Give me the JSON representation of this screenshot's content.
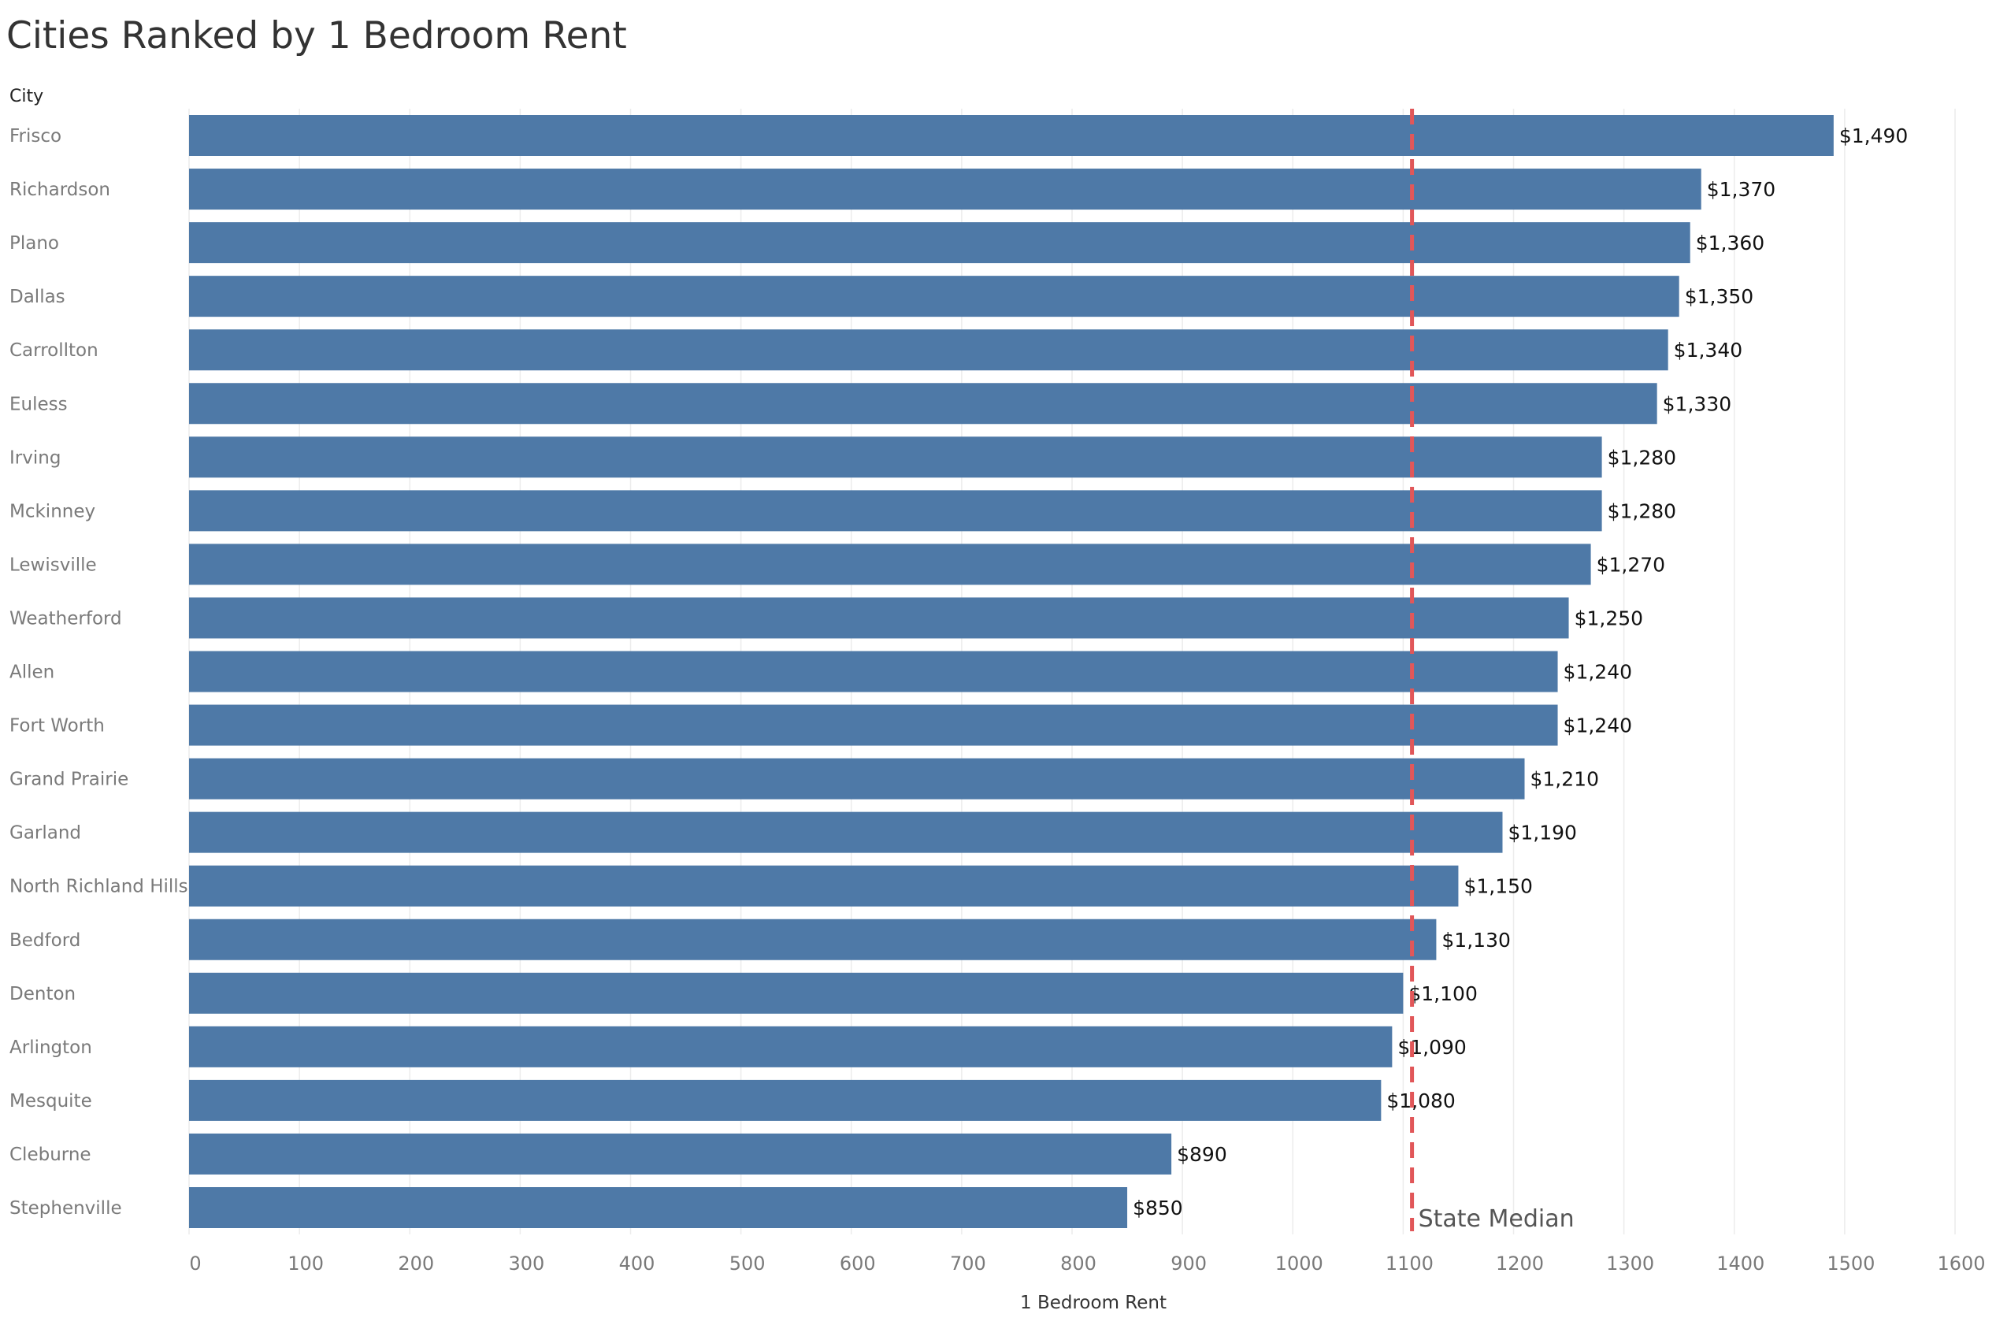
{
  "title": "Cities Ranked by 1 Bedroom Rent",
  "chart_data": {
    "type": "bar",
    "orientation": "horizontal",
    "title": "Cities Ranked by 1 Bedroom Rent",
    "ylabel": "City",
    "xlabel": "1 Bedroom Rent",
    "xlim": [
      0,
      1600
    ],
    "x_ticks": [
      0,
      100,
      200,
      300,
      400,
      500,
      600,
      700,
      800,
      900,
      1000,
      1100,
      1200,
      1300,
      1400,
      1500,
      1600
    ],
    "grid": "vertical",
    "bar_color": "#4e79a7",
    "categories": [
      "Frisco",
      "Richardson",
      "Plano",
      "Dallas",
      "Carrollton",
      "Euless",
      "Irving",
      "Mckinney",
      "Lewisville",
      "Weatherford",
      "Allen",
      "Fort Worth",
      "Grand Prairie",
      "Garland",
      "North Richland Hills",
      "Bedford",
      "Denton",
      "Arlington",
      "Mesquite",
      "Cleburne",
      "Stephenville"
    ],
    "values": [
      1490,
      1370,
      1360,
      1350,
      1340,
      1330,
      1280,
      1280,
      1270,
      1250,
      1240,
      1240,
      1210,
      1190,
      1150,
      1130,
      1100,
      1090,
      1080,
      890,
      850
    ],
    "data_labels": [
      "$1,490",
      "$1,370",
      "$1,360",
      "$1,350",
      "$1,340",
      "$1,330",
      "$1,280",
      "$1,280",
      "$1,270",
      "$1,250",
      "$1,240",
      "$1,240",
      "$1,210",
      "$1,190",
      "$1,150",
      "$1,130",
      "$1,100",
      "$1,090",
      "$1,080",
      "$890",
      "$850"
    ],
    "reference_line": {
      "label": "State Median",
      "value": 1108,
      "style": "dashed",
      "color": "#e15759"
    }
  }
}
